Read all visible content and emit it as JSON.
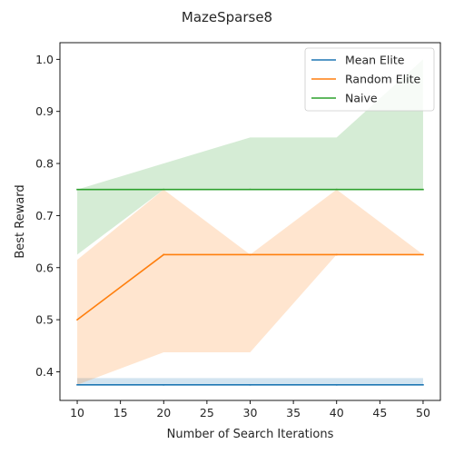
{
  "chart_data": {
    "type": "line",
    "title": "MazeSparse8",
    "xlabel": "Number of Search Iterations",
    "ylabel": "Best Reward",
    "xlim": [
      8,
      52
    ],
    "ylim": [
      0.345,
      1.032
    ],
    "x_ticks": [
      10,
      15,
      20,
      25,
      30,
      35,
      40,
      45,
      50
    ],
    "y_ticks": [
      0.4,
      0.5,
      0.6,
      0.7,
      0.8,
      0.9,
      1.0
    ],
    "x_tick_labels": [
      "10",
      "15",
      "20",
      "25",
      "30",
      "35",
      "40",
      "45",
      "50"
    ],
    "y_tick_labels": [
      "0.4",
      "0.5",
      "0.6",
      "0.7",
      "0.8",
      "0.9",
      "1.0"
    ],
    "grid": false,
    "legend_position": "top-right",
    "x": [
      10,
      20,
      30,
      40,
      50
    ],
    "series": [
      {
        "name": "Mean Elite",
        "color": "#1f77b4",
        "values": [
          0.375,
          0.375,
          0.375,
          0.375,
          0.375
        ],
        "band_low": [
          0.375,
          0.375,
          0.375,
          0.375,
          0.375
        ],
        "band_high": [
          0.388,
          0.388,
          0.388,
          0.388,
          0.388
        ]
      },
      {
        "name": "Random Elite",
        "color": "#ff7f0e",
        "values": [
          0.5,
          0.625,
          0.625,
          0.625,
          0.625
        ],
        "band_low": [
          0.375,
          0.4375,
          0.4375,
          0.625,
          0.625
        ],
        "band_high": [
          0.615,
          0.75,
          0.625,
          0.75,
          0.625
        ]
      },
      {
        "name": "Naive",
        "color": "#2ca02c",
        "values": [
          0.75,
          0.75,
          0.75,
          0.75,
          0.75
        ],
        "band_low": [
          0.625,
          0.75,
          0.75,
          0.75,
          0.75
        ],
        "band_high": [
          0.75,
          0.8,
          0.85,
          0.85,
          1.0
        ]
      }
    ]
  }
}
